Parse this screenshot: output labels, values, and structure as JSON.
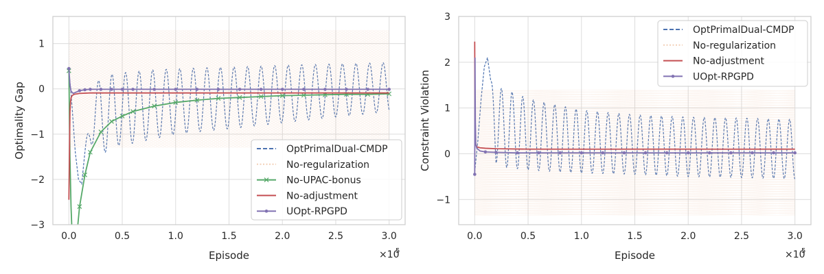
{
  "colors": {
    "OptPrimalDual-CMDP": "#4c72b0",
    "No-regularization": "#eebb99",
    "No-UPAC-bonus": "#55a868",
    "No-adjustment": "#c44e52",
    "UOpt-RPGPD": "#8172b2"
  },
  "chart_data": [
    {
      "type": "line",
      "xlabel": "Episode",
      "ylabel": "Optimality Gap",
      "offset_text": "×10",
      "offset_exp": "5",
      "xlim": [
        -0.15,
        3.15
      ],
      "ylim": [
        -3,
        1.6
      ],
      "xticks": [
        0.0,
        0.5,
        1.0,
        1.5,
        2.0,
        2.5,
        3.0
      ],
      "xtick_labels": [
        "0.0",
        "0.5",
        "1.0",
        "1.5",
        "2.0",
        "2.5",
        "3.0"
      ],
      "yticks": [
        -3,
        -2,
        -1,
        0,
        1
      ],
      "ytick_labels": [
        "−3",
        "−2",
        "−1",
        "0",
        "1"
      ],
      "grid": true,
      "legend_position": "lower-right",
      "legend": [
        "OptPrimalDual-CMDP",
        "No-regularization",
        "No-UPAC-bonus",
        "No-adjustment",
        "UOpt-RPGPD"
      ],
      "series": [
        {
          "name": "OptPrimalDual-CMDP",
          "style": "dashed",
          "x": [
            0.0,
            0.03,
            0.06,
            0.09,
            0.12,
            0.15,
            0.2,
            0.25,
            0.3,
            0.35,
            0.4,
            0.45,
            0.5,
            0.6,
            0.7,
            0.8,
            0.9,
            1.0,
            1.2,
            1.5,
            2.0,
            2.5,
            3.0
          ],
          "envelope_upper": [
            0.45,
            -0.4,
            -1.4,
            -2.0,
            -2.1,
            -1.4,
            -0.3,
            0.1,
            0.25,
            0.3,
            0.32,
            0.33,
            0.35,
            0.38,
            0.4,
            0.42,
            0.43,
            0.44,
            0.46,
            0.48,
            0.52,
            0.55,
            0.58
          ],
          "envelope_lower": [
            0.45,
            -0.4,
            -1.4,
            -2.0,
            -2.1,
            -1.4,
            -1.2,
            -1.3,
            -1.4,
            -1.4,
            -1.3,
            -1.25,
            -1.25,
            -1.2,
            -1.15,
            -1.1,
            -1.05,
            -1.0,
            -0.95,
            -0.88,
            -0.75,
            -0.62,
            -0.5
          ],
          "period": 0.127
        },
        {
          "name": "No-regularization",
          "style": "dotted",
          "x": [
            0.0,
            0.02,
            3.0
          ],
          "envelope_upper": [
            1.3,
            1.3,
            1.3
          ],
          "envelope_lower": [
            -1.3,
            -1.3,
            -1.3
          ]
        },
        {
          "name": "No-UPAC-bonus",
          "marker": "x",
          "x": [
            0.0,
            0.01,
            0.02,
            0.03,
            0.05,
            0.08,
            0.1,
            0.15,
            0.2,
            0.3,
            0.4,
            0.5,
            0.6,
            0.8,
            1.0,
            1.2,
            1.4,
            1.6,
            1.8,
            2.0,
            2.2,
            2.4,
            2.6,
            2.8,
            3.0
          ],
          "y": [
            0.4,
            -1.5,
            -2.6,
            -3.2,
            -3.4,
            -3.1,
            -2.6,
            -1.9,
            -1.4,
            -0.95,
            -0.72,
            -0.6,
            -0.5,
            -0.38,
            -0.3,
            -0.25,
            -0.21,
            -0.19,
            -0.17,
            -0.15,
            -0.14,
            -0.13,
            -0.12,
            -0.12,
            -0.11
          ]
        },
        {
          "name": "No-adjustment",
          "marker": "none",
          "x": [
            0.0,
            0.01,
            0.015,
            0.02,
            0.03,
            0.05,
            0.1,
            0.2,
            0.3,
            0.5,
            1.0,
            1.5,
            2.0,
            2.5,
            3.0
          ],
          "y": [
            -2.45,
            -0.5,
            -0.3,
            -0.2,
            -0.15,
            -0.12,
            -0.1,
            -0.09,
            -0.09,
            -0.09,
            -0.09,
            -0.09,
            -0.09,
            -0.09,
            -0.09
          ]
        },
        {
          "name": "UOpt-RPGPD",
          "marker": "dot",
          "x": [
            0.0,
            0.01,
            0.02,
            0.04,
            0.06,
            0.1,
            0.15,
            0.2,
            0.3,
            0.4,
            0.5,
            0.6,
            0.8,
            1.0,
            1.2,
            1.4,
            1.6,
            1.8,
            2.0,
            2.2,
            2.4,
            2.6,
            2.8,
            3.0
          ],
          "y": [
            0.45,
            0.1,
            -0.05,
            -0.1,
            -0.08,
            -0.04,
            -0.02,
            -0.01,
            -0.01,
            -0.01,
            -0.01,
            -0.01,
            -0.01,
            -0.01,
            -0.01,
            -0.01,
            -0.01,
            -0.01,
            -0.01,
            -0.01,
            -0.01,
            -0.01,
            -0.01,
            -0.01
          ]
        }
      ]
    },
    {
      "type": "line",
      "xlabel": "Episode",
      "ylabel": "Constraint Violation",
      "offset_text": "×10",
      "offset_exp": "5",
      "xlim": [
        -0.15,
        3.15
      ],
      "ylim": [
        -1.55,
        3
      ],
      "xticks": [
        0.0,
        0.5,
        1.0,
        1.5,
        2.0,
        2.5,
        3.0
      ],
      "xtick_labels": [
        "0.0",
        "0.5",
        "1.0",
        "1.5",
        "2.0",
        "2.5",
        "3.0"
      ],
      "yticks": [
        -1,
        0,
        1,
        2,
        3
      ],
      "ytick_labels": [
        "−1",
        "0",
        "1",
        "2",
        "3"
      ],
      "grid": true,
      "legend_position": "upper-right",
      "legend": [
        "OptPrimalDual-CMDP",
        "No-regularization",
        "No-adjustment",
        "UOpt-RPGPD"
      ],
      "series": [
        {
          "name": "OptPrimalDual-CMDP",
          "style": "dashed",
          "x": [
            0.0,
            0.03,
            0.06,
            0.09,
            0.12,
            0.15,
            0.2,
            0.3,
            0.5,
            0.8,
            1.0,
            1.5,
            2.0,
            2.5,
            3.0
          ],
          "envelope_upper": [
            -0.4,
            0.3,
            1.2,
            1.9,
            2.1,
            1.6,
            1.45,
            1.4,
            1.2,
            1.05,
            0.95,
            0.85,
            0.8,
            0.78,
            0.75
          ],
          "envelope_lower": [
            -0.4,
            0.3,
            1.2,
            1.9,
            2.1,
            1.6,
            -0.2,
            -0.3,
            -0.35,
            -0.4,
            -0.42,
            -0.45,
            -0.5,
            -0.52,
            -0.55
          ],
          "period": 0.1
        },
        {
          "name": "No-regularization",
          "style": "dotted",
          "x": [
            0.0,
            0.02,
            3.0
          ],
          "envelope_upper": [
            1.4,
            1.4,
            1.4
          ],
          "envelope_lower": [
            -1.35,
            -1.35,
            -1.35
          ]
        },
        {
          "name": "No-adjustment",
          "marker": "none",
          "x": [
            0.0,
            0.003,
            0.006,
            0.01,
            0.02,
            0.05,
            0.1,
            0.2,
            0.5,
            1.0,
            2.0,
            3.0
          ],
          "y": [
            2.45,
            0.6,
            0.3,
            0.2,
            0.15,
            0.13,
            0.12,
            0.11,
            0.1,
            0.1,
            0.1,
            0.1
          ]
        },
        {
          "name": "UOpt-RPGPD",
          "marker": "dot",
          "x": [
            0.0,
            0.003,
            0.006,
            0.01,
            0.02,
            0.05,
            0.1,
            0.2,
            0.4,
            0.6,
            0.8,
            1.0,
            1.2,
            1.4,
            1.6,
            1.8,
            2.0,
            2.2,
            2.4,
            2.6,
            2.8,
            3.0
          ],
          "y": [
            -0.45,
            2.1,
            0.7,
            0.2,
            0.12,
            0.06,
            0.04,
            0.03,
            0.02,
            0.02,
            0.02,
            0.02,
            0.02,
            0.02,
            0.02,
            0.02,
            0.02,
            0.02,
            0.02,
            0.02,
            0.02,
            0.02
          ]
        }
      ]
    }
  ]
}
